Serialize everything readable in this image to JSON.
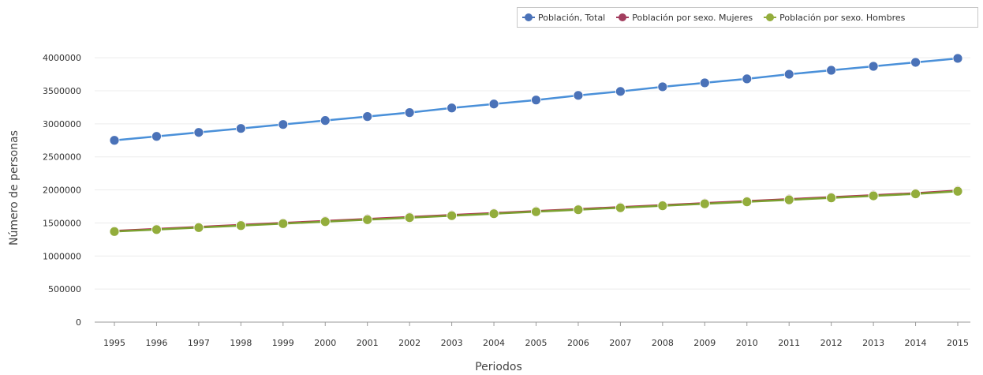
{
  "chart_data": {
    "type": "line",
    "title": "",
    "xlabel": "Periodos",
    "ylabel": "Número de personas",
    "x": [
      "1995",
      "1996",
      "1997",
      "1998",
      "1999",
      "2000",
      "2001",
      "2002",
      "2003",
      "2004",
      "2005",
      "2006",
      "2007",
      "2008",
      "2009",
      "2010",
      "2011",
      "2012",
      "2013",
      "2014",
      "2015"
    ],
    "ylim": [
      0,
      4300000
    ],
    "yticks": [
      "0",
      "500000",
      "1000000",
      "1500000",
      "2000000",
      "2500000",
      "3000000",
      "3500000",
      "4000000"
    ],
    "grid": true,
    "legend_position": "top-right",
    "series": [
      {
        "name": "Población, Total",
        "color": "#4a72b8",
        "line_color": "#4a90d9",
        "values": [
          2750000,
          2810000,
          2870000,
          2930000,
          2990000,
          3050000,
          3110000,
          3170000,
          3240000,
          3300000,
          3360000,
          3430000,
          3490000,
          3560000,
          3620000,
          3680000,
          3750000,
          3810000,
          3870000,
          3930000,
          3990000
        ]
      },
      {
        "name": "Población por sexo. Mujeres",
        "color": "#a23d5e",
        "line_color": "#b03050",
        "values": [
          1380000,
          1410000,
          1440000,
          1470000,
          1500000,
          1530000,
          1560000,
          1590000,
          1620000,
          1650000,
          1680000,
          1710000,
          1740000,
          1770000,
          1800000,
          1830000,
          1860000,
          1890000,
          1920000,
          1950000,
          1990000
        ]
      },
      {
        "name": "Población por sexo. Hombres",
        "color": "#93ad3c",
        "line_color": "#7aa030",
        "values": [
          1370000,
          1400000,
          1430000,
          1460000,
          1490000,
          1520000,
          1550000,
          1580000,
          1610000,
          1640000,
          1670000,
          1700000,
          1730000,
          1760000,
          1790000,
          1820000,
          1850000,
          1880000,
          1910000,
          1940000,
          1980000
        ]
      }
    ]
  }
}
